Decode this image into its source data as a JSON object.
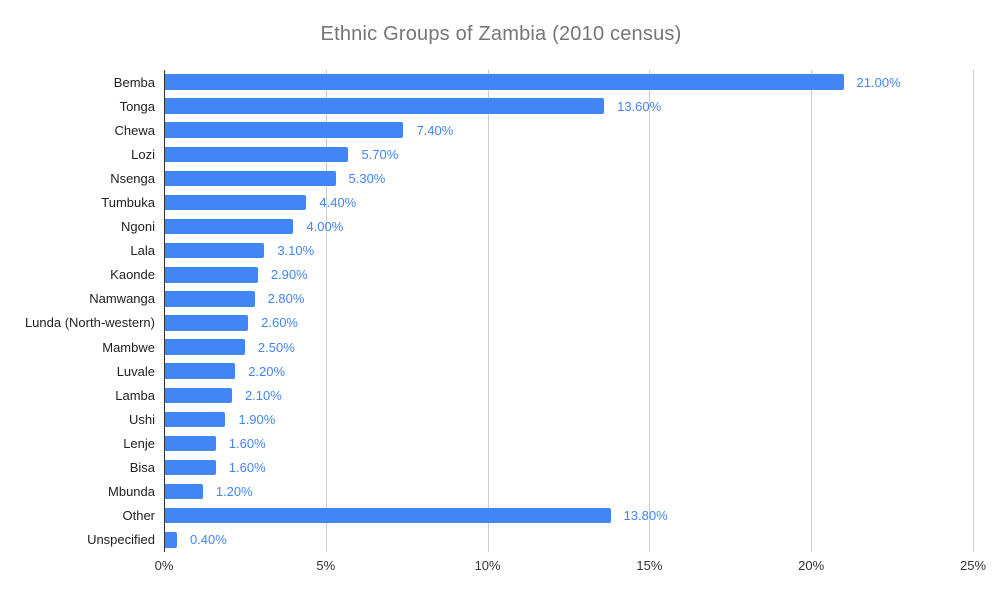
{
  "page": {
    "background": "#ffffff"
  },
  "chart_data": {
    "type": "bar",
    "orientation": "horizontal",
    "title": "Ethnic Groups of Zambia (2010 census)",
    "categories": [
      "Bemba",
      "Tonga",
      "Chewa",
      "Lozi",
      "Nsenga",
      "Tumbuka",
      "Ngoni",
      "Lala",
      "Kaonde",
      "Namwanga",
      "Lunda (North-western)",
      "Mambwe",
      "Luvale",
      "Lamba",
      "Ushi",
      "Lenje",
      "Bisa",
      "Mbunda",
      "Other",
      "Unspecified"
    ],
    "values": [
      21.0,
      13.6,
      7.4,
      5.7,
      5.3,
      4.4,
      4.0,
      3.1,
      2.9,
      2.8,
      2.6,
      2.5,
      2.2,
      2.1,
      1.9,
      1.6,
      1.6,
      1.2,
      13.8,
      0.4
    ],
    "value_labels": [
      "21.00%",
      "13.60%",
      "7.40%",
      "5.70%",
      "5.30%",
      "4.40%",
      "4.00%",
      "3.10%",
      "2.90%",
      "2.80%",
      "2.60%",
      "2.50%",
      "2.20%",
      "2.10%",
      "1.90%",
      "1.60%",
      "1.60%",
      "1.20%",
      "13.80%",
      "0.40%"
    ],
    "x_tick_labels": [
      "0%",
      "5%",
      "10%",
      "15%",
      "20%",
      "25%"
    ],
    "x_tick_values": [
      0,
      5,
      10,
      15,
      20,
      25
    ],
    "xlim": [
      0,
      25
    ],
    "xlabel": "",
    "ylabel": "",
    "grid": "vertical-gridlines",
    "legend": "none",
    "colors": {
      "bar": "#4285f4",
      "value_label": "#4285f4",
      "title": "#757575",
      "category_label": "#222222",
      "axis_tick_label": "#333333",
      "gridline": "#cccccc",
      "baseline": "#333333"
    }
  }
}
